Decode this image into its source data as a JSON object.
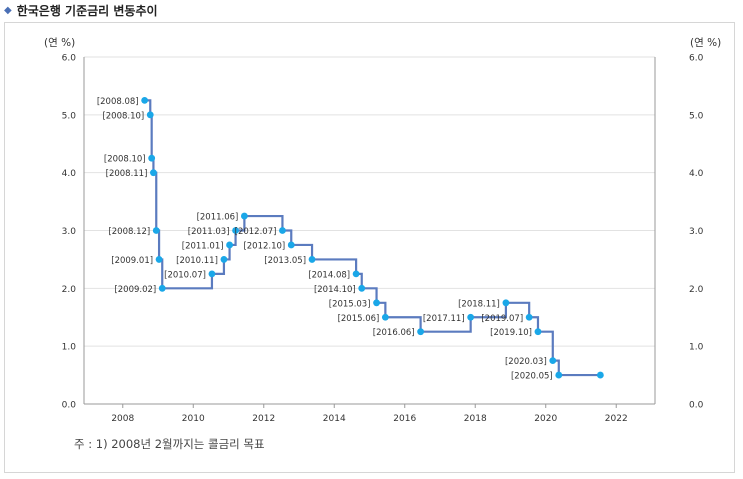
{
  "header": {
    "title": "한국은행 기준금리 변동추이"
  },
  "footnote": "주 : 1) 2008년 2월까지는 콜금리 목표",
  "colors": {
    "line": "#5b7bbf",
    "marker": "#1aa7e8",
    "grid": "#e2e2e2",
    "axis": "#999999",
    "text": "#333333"
  },
  "chart_data": {
    "type": "line",
    "title": "한국은행 기준금리 변동추이",
    "ylabel_left": "(연 %)",
    "ylabel_right": "(연 %)",
    "step": true,
    "xlim": [
      2006.9,
      2023.1
    ],
    "ylim": [
      0,
      6
    ],
    "x_ticks": [
      2008,
      2010,
      2012,
      2014,
      2016,
      2018,
      2020,
      2022
    ],
    "y_ticks": [
      "0.0",
      "1.0",
      "2.0",
      "3.0",
      "4.0",
      "5.0",
      "6.0"
    ],
    "grid": "horizontal",
    "points": [
      {
        "x": 2008.62,
        "y": 5.25,
        "label": "[2008.08]"
      },
      {
        "x": 2008.78,
        "y": 5.0,
        "label": "[2008.10]"
      },
      {
        "x": 2008.82,
        "y": 4.25,
        "label": "[2008.10]"
      },
      {
        "x": 2008.87,
        "y": 4.0,
        "label": "[2008.11]"
      },
      {
        "x": 2008.95,
        "y": 3.0,
        "label": "[2008.12]"
      },
      {
        "x": 2009.03,
        "y": 2.5,
        "label": "[2009.01]"
      },
      {
        "x": 2009.12,
        "y": 2.0,
        "label": "[2009.02]"
      },
      {
        "x": 2010.53,
        "y": 2.25,
        "label": "[2010.07]"
      },
      {
        "x": 2010.87,
        "y": 2.5,
        "label": "[2010.11]"
      },
      {
        "x": 2011.03,
        "y": 2.75,
        "label": "[2011.01]"
      },
      {
        "x": 2011.2,
        "y": 3.0,
        "label": "[2011.03]"
      },
      {
        "x": 2011.45,
        "y": 3.25,
        "label": "[2011.06]"
      },
      {
        "x": 2012.53,
        "y": 3.0,
        "label": "[2012.07]"
      },
      {
        "x": 2012.78,
        "y": 2.75,
        "label": "[2012.10]"
      },
      {
        "x": 2013.37,
        "y": 2.5,
        "label": "[2013.05]"
      },
      {
        "x": 2014.62,
        "y": 2.25,
        "label": "[2014.08]"
      },
      {
        "x": 2014.78,
        "y": 2.0,
        "label": "[2014.10]"
      },
      {
        "x": 2015.2,
        "y": 1.75,
        "label": "[2015.03]"
      },
      {
        "x": 2015.45,
        "y": 1.5,
        "label": "[2015.06]"
      },
      {
        "x": 2016.45,
        "y": 1.25,
        "label": "[2016.06]"
      },
      {
        "x": 2017.87,
        "y": 1.5,
        "label": "[2017.11]"
      },
      {
        "x": 2018.87,
        "y": 1.75,
        "label": "[2018.11]"
      },
      {
        "x": 2019.53,
        "y": 1.5,
        "label": "[2019.07]"
      },
      {
        "x": 2019.78,
        "y": 1.25,
        "label": "[2019.10]"
      },
      {
        "x": 2020.2,
        "y": 0.75,
        "label": "[2020.03]"
      },
      {
        "x": 2020.37,
        "y": 0.5,
        "label": "[2020.05]"
      },
      {
        "x": 2021.55,
        "y": 0.5,
        "label": ""
      }
    ]
  }
}
